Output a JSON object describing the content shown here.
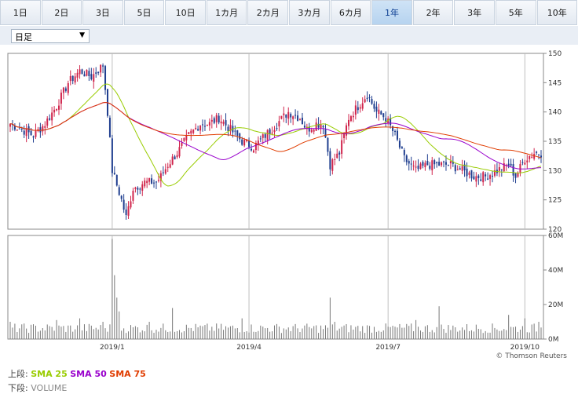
{
  "tabs": [
    "1日",
    "2日",
    "3日",
    "5日",
    "10日",
    "1カ月",
    "2カ月",
    "3カ月",
    "6カ月",
    "1年",
    "2年",
    "3年",
    "5年",
    "10年"
  ],
  "active_tab": "1年",
  "interval_select": "日足",
  "legend": {
    "upper_label": "上段:",
    "sma25": "SMA 25",
    "sma50": "SMA 50",
    "sma75": "SMA 75",
    "lower_label": "下段:",
    "volume": "VOLUME"
  },
  "colors": {
    "up": "#d0254c",
    "down": "#1f3e8f",
    "sma25": "#99cc00",
    "sma50": "#9900cc",
    "sma75": "#e03c00",
    "grid": "#bfbfbf"
  },
  "chart_data": {
    "type": "candlestick",
    "price_axis": {
      "ylim": [
        120,
        150
      ],
      "ticks": [
        120,
        125,
        130,
        135,
        140,
        145,
        150
      ]
    },
    "volume_axis": {
      "ylim": [
        0,
        60
      ],
      "ticks_label": [
        "0M",
        "20M",
        "40M",
        "60M"
      ],
      "unit": "M"
    },
    "x_labels": [
      "2019/1",
      "2019/4",
      "2019/7",
      "2019/10"
    ],
    "credit": "© Thomson Reuters",
    "keypoints_close": [
      [
        0,
        138
      ],
      [
        5,
        137
      ],
      [
        10,
        136
      ],
      [
        15,
        138
      ],
      [
        20,
        141
      ],
      [
        25,
        145
      ],
      [
        30,
        147
      ],
      [
        35,
        146
      ],
      [
        40,
        148
      ],
      [
        42,
        140
      ],
      [
        44,
        130
      ],
      [
        48,
        125
      ],
      [
        50,
        122
      ],
      [
        53,
        127
      ],
      [
        58,
        128
      ],
      [
        63,
        128
      ],
      [
        65,
        129
      ],
      [
        68,
        131
      ],
      [
        72,
        133
      ],
      [
        77,
        136
      ],
      [
        82,
        138
      ],
      [
        86,
        138
      ],
      [
        90,
        139
      ],
      [
        95,
        137
      ],
      [
        100,
        135
      ],
      [
        105,
        134
      ],
      [
        110,
        136
      ],
      [
        115,
        138
      ],
      [
        120,
        140
      ],
      [
        125,
        139
      ],
      [
        128,
        137
      ],
      [
        132,
        138
      ],
      [
        135,
        138
      ],
      [
        138,
        131
      ],
      [
        142,
        133
      ],
      [
        146,
        139
      ],
      [
        150,
        141
      ],
      [
        154,
        143
      ],
      [
        158,
        140
      ],
      [
        162,
        139
      ],
      [
        166,
        136
      ],
      [
        170,
        132
      ],
      [
        175,
        130
      ],
      [
        180,
        131
      ],
      [
        185,
        131
      ],
      [
        190,
        131
      ],
      [
        195,
        130
      ],
      [
        200,
        129
      ],
      [
        205,
        129
      ],
      [
        210,
        130
      ],
      [
        215,
        131
      ],
      [
        218,
        129
      ],
      [
        222,
        132
      ],
      [
        226,
        133
      ],
      [
        229,
        133
      ]
    ],
    "volume_spikes_m": [
      [
        0,
        10
      ],
      [
        20,
        11
      ],
      [
        30,
        12
      ],
      [
        40,
        10
      ],
      [
        44,
        58
      ],
      [
        45,
        37
      ],
      [
        46,
        24
      ],
      [
        47,
        16
      ],
      [
        60,
        10
      ],
      [
        70,
        18
      ],
      [
        100,
        12
      ],
      [
        138,
        24
      ],
      [
        140,
        10
      ],
      [
        175,
        11
      ],
      [
        185,
        19
      ],
      [
        215,
        14
      ],
      [
        222,
        12
      ],
      [
        228,
        10
      ]
    ],
    "volume_baseline_m": 7
  }
}
